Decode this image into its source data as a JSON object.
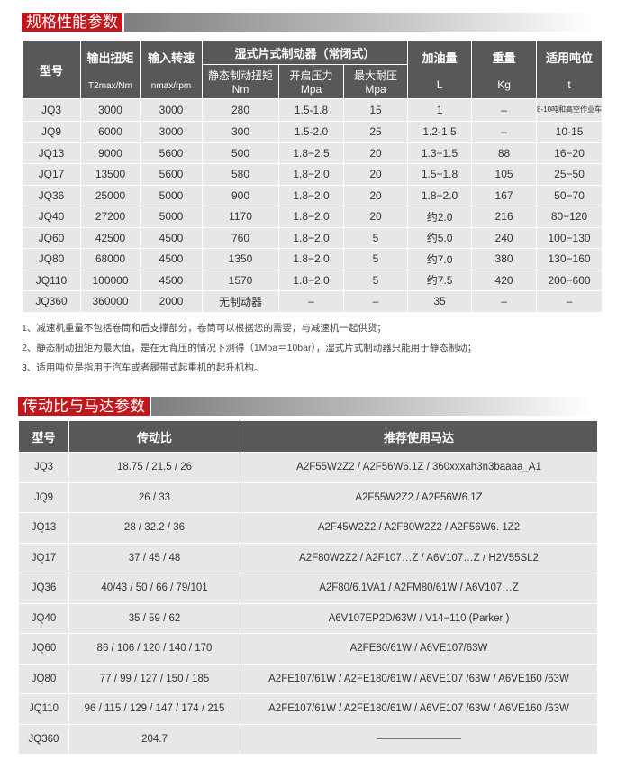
{
  "section1": {
    "title": "规格性能参数",
    "headers": {
      "model": "型号",
      "torque": "输出扭矩",
      "torque_unit": "T2max/Nm",
      "speed": "输入转速",
      "speed_unit": "nmax/rpm",
      "brake": "湿式片式制动器（常闭式）",
      "static": "静态制动扭矩",
      "static_unit": "Nm",
      "open": "开启压力",
      "open_unit": "Mpa",
      "maxp": "最大耐压",
      "maxp_unit": "Mpa",
      "oil": "加油量",
      "oil_unit": "L",
      "weight": "重量",
      "weight_unit": "Kg",
      "ton": "适用吨位",
      "ton_unit": "t"
    },
    "rows": [
      [
        "JQ3",
        "3000",
        "3000",
        "280",
        "1.5-1.8",
        "15",
        "1",
        "–",
        "8-10吨和高空作业车"
      ],
      [
        "JQ9",
        "6000",
        "3000",
        "300",
        "1.5-2.0",
        "25",
        "1.2-1.5",
        "–",
        "10-15"
      ],
      [
        "JQ13",
        "9000",
        "5600",
        "500",
        "1.8−2.5",
        "20",
        "1.3−1.5",
        "88",
        "16−20"
      ],
      [
        "JQ17",
        "13500",
        "5600",
        "580",
        "1.8−2.0",
        "20",
        "1.5−1.8",
        "105",
        "25−50"
      ],
      [
        "JQ36",
        "25000",
        "5000",
        "900",
        "1.8−2.0",
        "20",
        "1.8−2.0",
        "167",
        "50−70"
      ],
      [
        "JQ40",
        "27200",
        "5000",
        "1170",
        "1.8−2.0",
        "20",
        "约2.0",
        "216",
        "80−120"
      ],
      [
        "JQ60",
        "42500",
        "4500",
        "760",
        "1.8−2.0",
        "5",
        "约5.0",
        "240",
        "100−130"
      ],
      [
        "JQ80",
        "68000",
        "4500",
        "1350",
        "1.8−2.0",
        "5",
        "约7.0",
        "380",
        "130−160"
      ],
      [
        "JQ110",
        "100000",
        "4500",
        "1570",
        "1.8−2.0",
        "5",
        "约7.5",
        "420",
        "200−600"
      ],
      [
        "JQ360",
        "360000",
        "2000",
        "无制动器",
        "–",
        "–",
        "35",
        "–",
        "–"
      ]
    ],
    "notes": [
      "1、减速机重量不包括卷筒和后支撑部分，卷筒可以根据您的需要，与减速机一起供货；",
      "2、静态制动扭矩为最大值，是在无背压的情况下测得（1Mpa＝10bar），湿式片式制动器只能用于静态制动；",
      "3、适用吨位是指用于汽车或者履带式起重机的起升机构。"
    ]
  },
  "section2": {
    "title": "传动比与马达参数",
    "headers": [
      "型号",
      "传动比",
      "推荐使用马达"
    ],
    "rows": [
      [
        "JQ3",
        "18.75 / 21.5 / 26",
        "A2F55W2Z2 / A2F56W6.1Z / 360xxxah3n3baaaa_A1"
      ],
      [
        "JQ9",
        "26 / 33",
        "A2F55W2Z2 / A2F56W6.1Z"
      ],
      [
        "JQ13",
        "28 / 32.2 / 36",
        "A2F45W2Z2 / A2F80W2Z2 / A2F56W6. 1Z2"
      ],
      [
        "JQ17",
        "37 / 45 / 48",
        "A2F80W2Z2 / A2F107…Z / A6V107…Z / H2V55SL2"
      ],
      [
        "JQ36",
        "40/43 / 50 / 66 / 79/101",
        "A2F80/6.1VA1 / A2FM80/61W / A6V107…Z"
      ],
      [
        "JQ40",
        "35 / 59 / 62",
        "A6V107EP2D/63W / V14−110 (Parker )"
      ],
      [
        "JQ60",
        "86 / 106 / 120 / 140 / 170",
        "A2FE80/61W / A6VE107/63W"
      ],
      [
        "JQ80",
        "77 / 99 / 127 / 150 / 185",
        "A2FE107/61W / A2FE180/61W / A6VE107 /63W / A6VE160 /63W"
      ],
      [
        "JQ110",
        "96 / 115 / 129 / 147 / 174 / 215",
        "A2FE107/61W / A2FE180/61W / A6VE107 /63W / A6VE160 /63W"
      ],
      [
        "JQ360",
        "204.7",
        ""
      ]
    ]
  },
  "colors": {
    "accent": "#c1161c",
    "header": "#58585a",
    "row": "#e6e7e8"
  }
}
